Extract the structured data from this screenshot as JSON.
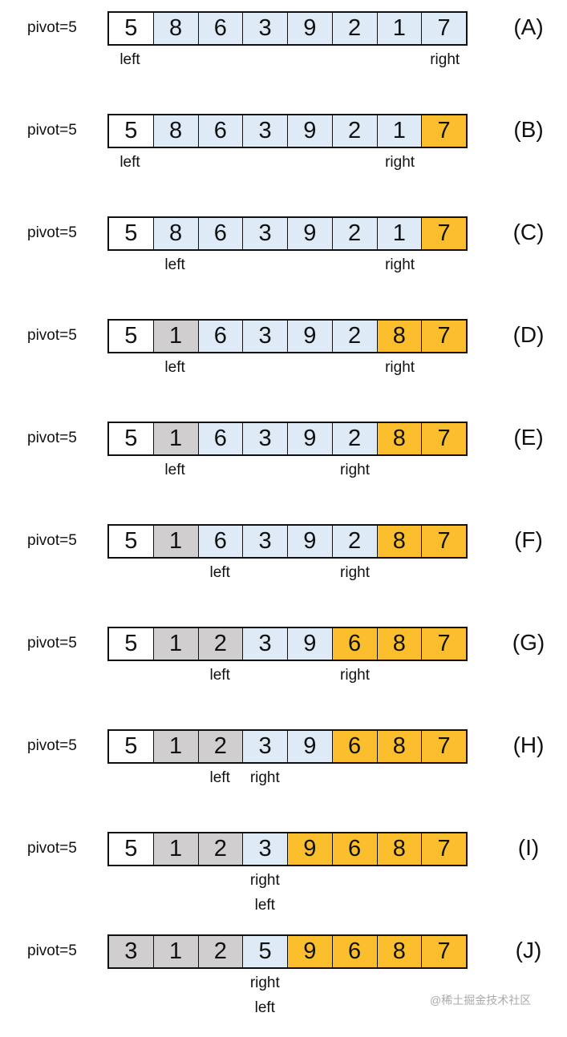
{
  "colors": {
    "w": "#ffffff",
    "b": "#deebf7",
    "g": "#d0cece",
    "o": "#fbbf2d"
  },
  "rows": [
    {
      "pivot": "pivot=5",
      "tag": "(A)",
      "values": [
        "5",
        "8",
        "6",
        "3",
        "9",
        "2",
        "1",
        "7"
      ],
      "states": [
        "w",
        "b",
        "b",
        "b",
        "b",
        "b",
        "b",
        "b"
      ],
      "labels": [
        {
          "text": "left",
          "cell": 0,
          "line": 0
        },
        {
          "text": "right",
          "cell": 7,
          "line": 0
        }
      ]
    },
    {
      "pivot": "pivot=5",
      "tag": "(B)",
      "values": [
        "5",
        "8",
        "6",
        "3",
        "9",
        "2",
        "1",
        "7"
      ],
      "states": [
        "w",
        "b",
        "b",
        "b",
        "b",
        "b",
        "b",
        "o"
      ],
      "labels": [
        {
          "text": "left",
          "cell": 0,
          "line": 0
        },
        {
          "text": "right",
          "cell": 6,
          "line": 0
        }
      ]
    },
    {
      "pivot": "pivot=5",
      "tag": "(C)",
      "values": [
        "5",
        "8",
        "6",
        "3",
        "9",
        "2",
        "1",
        "7"
      ],
      "states": [
        "w",
        "b",
        "b",
        "b",
        "b",
        "b",
        "b",
        "o"
      ],
      "labels": [
        {
          "text": "left",
          "cell": 1,
          "line": 0
        },
        {
          "text": "right",
          "cell": 6,
          "line": 0
        }
      ]
    },
    {
      "pivot": "pivot=5",
      "tag": "(D)",
      "values": [
        "5",
        "1",
        "6",
        "3",
        "9",
        "2",
        "8",
        "7"
      ],
      "states": [
        "w",
        "g",
        "b",
        "b",
        "b",
        "b",
        "o",
        "o"
      ],
      "labels": [
        {
          "text": "left",
          "cell": 1,
          "line": 0
        },
        {
          "text": "right",
          "cell": 6,
          "line": 0
        }
      ]
    },
    {
      "pivot": "pivot=5",
      "tag": "(E)",
      "values": [
        "5",
        "1",
        "6",
        "3",
        "9",
        "2",
        "8",
        "7"
      ],
      "states": [
        "w",
        "g",
        "b",
        "b",
        "b",
        "b",
        "o",
        "o"
      ],
      "labels": [
        {
          "text": "left",
          "cell": 1,
          "line": 0
        },
        {
          "text": "right",
          "cell": 5,
          "line": 0
        }
      ]
    },
    {
      "pivot": "pivot=5",
      "tag": "(F)",
      "values": [
        "5",
        "1",
        "6",
        "3",
        "9",
        "2",
        "8",
        "7"
      ],
      "states": [
        "w",
        "g",
        "b",
        "b",
        "b",
        "b",
        "o",
        "o"
      ],
      "labels": [
        {
          "text": "left",
          "cell": 2,
          "line": 0
        },
        {
          "text": "right",
          "cell": 5,
          "line": 0
        }
      ]
    },
    {
      "pivot": "pivot=5",
      "tag": "(G)",
      "values": [
        "5",
        "1",
        "2",
        "3",
        "9",
        "6",
        "8",
        "7"
      ],
      "states": [
        "w",
        "g",
        "g",
        "b",
        "b",
        "o",
        "o",
        "o"
      ],
      "labels": [
        {
          "text": "left",
          "cell": 2,
          "line": 0
        },
        {
          "text": "right",
          "cell": 5,
          "line": 0
        }
      ]
    },
    {
      "pivot": "pivot=5",
      "tag": "(H)",
      "values": [
        "5",
        "1",
        "2",
        "3",
        "9",
        "6",
        "8",
        "7"
      ],
      "states": [
        "w",
        "g",
        "g",
        "b",
        "b",
        "o",
        "o",
        "o"
      ],
      "labels": [
        {
          "text": "left",
          "cell": 2,
          "line": 0
        },
        {
          "text": "right",
          "cell": 3,
          "line": 0
        }
      ]
    },
    {
      "pivot": "pivot=5",
      "tag": "(I)",
      "values": [
        "5",
        "1",
        "2",
        "3",
        "9",
        "6",
        "8",
        "7"
      ],
      "states": [
        "w",
        "g",
        "g",
        "b",
        "o",
        "o",
        "o",
        "o"
      ],
      "labels": [
        {
          "text": "right",
          "cell": 3,
          "line": 0
        },
        {
          "text": "left",
          "cell": 3,
          "line": 1
        }
      ]
    },
    {
      "pivot": "pivot=5",
      "tag": "(J)",
      "values": [
        "3",
        "1",
        "2",
        "5",
        "9",
        "6",
        "8",
        "7"
      ],
      "states": [
        "g",
        "g",
        "g",
        "b",
        "o",
        "o",
        "o",
        "o"
      ],
      "labels": [
        {
          "text": "right",
          "cell": 3,
          "line": 0
        },
        {
          "text": "left",
          "cell": 3,
          "line": 1
        }
      ]
    }
  ],
  "watermark": "@稀土掘金技术社区"
}
